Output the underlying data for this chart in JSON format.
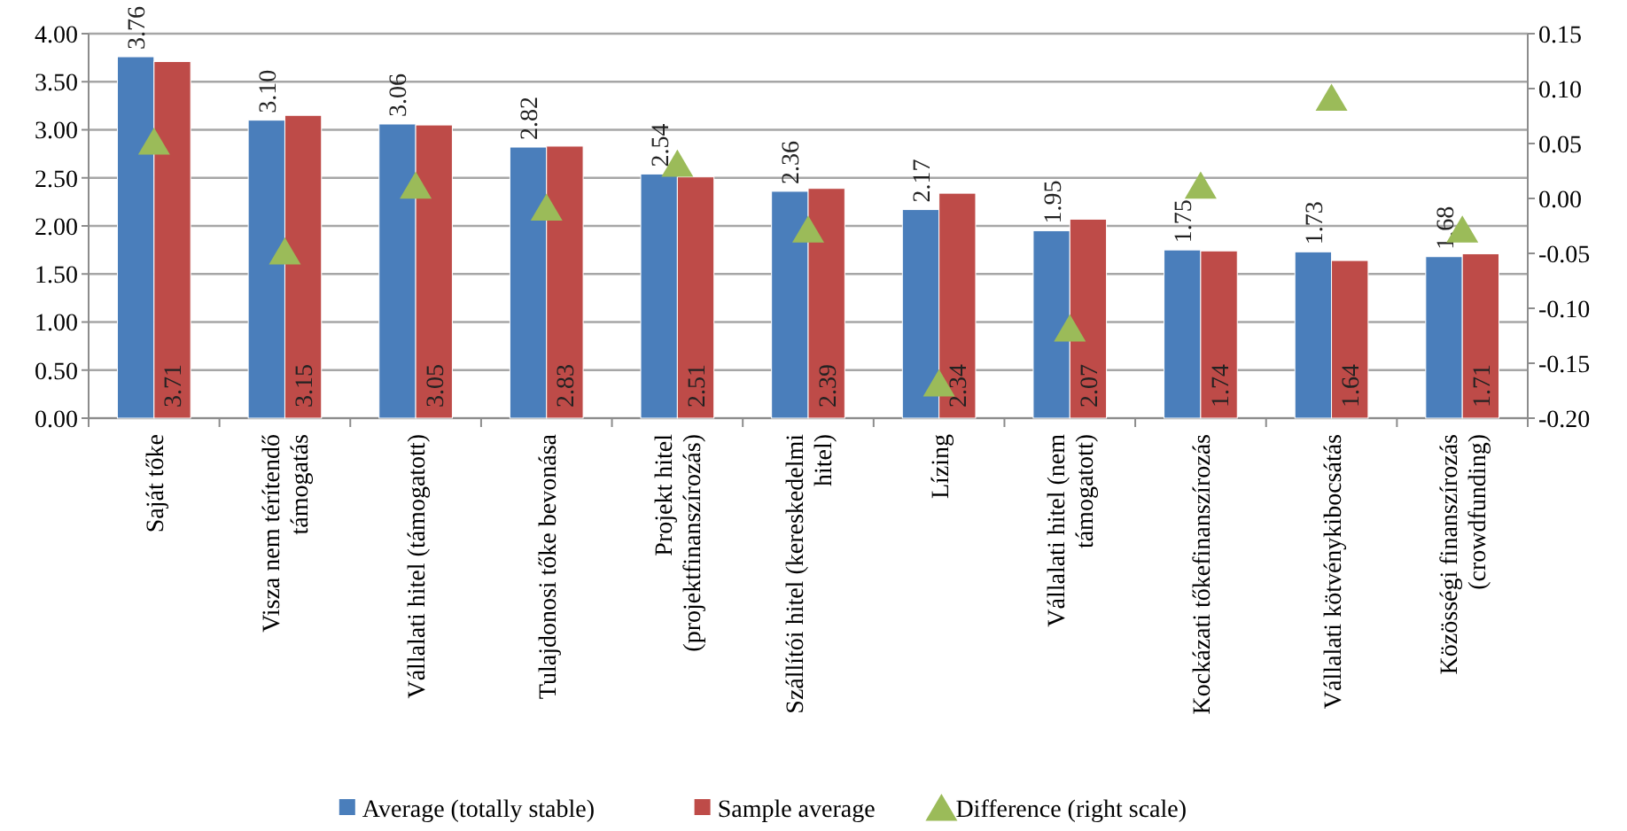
{
  "chart_data": {
    "type": "bar",
    "categories": [
      "Saját tőke",
      "Visza nem térítendő\ntámogatás",
      "Vállalati hitel (támogatott)",
      "Tulajdonosi tőke bevonása",
      "Projekt hitel\n(projektfinanszírozás)",
      "Szállítói hitel (kereskedelmi\nhitel)",
      "Lízing",
      "Vállalati hitel (nem\ntámogatott)",
      "Kockázati tőkefinanszírozás",
      "Vállalati kötvénykibocsátás",
      "Közösségi finanszírozás\n(crowdfunding)"
    ],
    "series": [
      {
        "name": "Average (totally stable)",
        "color": "#4a7ebb",
        "values": [
          3.76,
          3.1,
          3.06,
          2.82,
          2.54,
          2.36,
          2.17,
          1.95,
          1.75,
          1.73,
          1.68
        ],
        "value_labels": [
          "3.76",
          "3.10",
          "3.06",
          "2.82",
          "2.54",
          "2.36",
          "2.17",
          "1.95",
          "1.75",
          "1.73",
          "1.68"
        ]
      },
      {
        "name": "Sample average",
        "color": "#be4b48",
        "values": [
          3.71,
          3.15,
          3.05,
          2.83,
          2.51,
          2.39,
          2.34,
          2.07,
          1.74,
          1.64,
          1.71
        ],
        "value_labels": [
          "3.71",
          "3.15",
          "3.05",
          "2.83",
          "2.51",
          "2.39",
          "2.34",
          "2.07",
          "1.74",
          "1.64",
          "1.71"
        ]
      },
      {
        "name": "Difference (right scale)",
        "type": "scatter",
        "axis": "y2",
        "color": "#9bbb59",
        "marker": "triangle",
        "values": [
          0.05,
          -0.05,
          0.01,
          -0.01,
          0.03,
          -0.03,
          -0.17,
          -0.12,
          0.01,
          0.09,
          -0.03
        ]
      }
    ],
    "ylim": [
      0,
      4
    ],
    "yticks": [
      {
        "value": 0,
        "label": "0.00"
      },
      {
        "value": 0.5,
        "label": "0.50"
      },
      {
        "value": 1,
        "label": "1.00"
      },
      {
        "value": 1.5,
        "label": "1.50"
      },
      {
        "value": 2,
        "label": "2.00"
      },
      {
        "value": 2.5,
        "label": "2.50"
      },
      {
        "value": 3,
        "label": "3.00"
      },
      {
        "value": 3.5,
        "label": "3.50"
      },
      {
        "value": 4,
        "label": "4.00"
      }
    ],
    "y2lim": [
      -0.2,
      0.15
    ],
    "y2ticks": [
      {
        "value": -0.2,
        "label": "-0.20"
      },
      {
        "value": -0.15,
        "label": "-0.15"
      },
      {
        "value": -0.1,
        "label": "-0.10"
      },
      {
        "value": -0.05,
        "label": "-0.05"
      },
      {
        "value": 0,
        "label": "0.00"
      },
      {
        "value": 0.05,
        "label": "0.05"
      },
      {
        "value": 0.1,
        "label": "0.10"
      },
      {
        "value": 0.15,
        "label": "0.15"
      }
    ],
    "grid": "y",
    "legend": "bottom"
  }
}
